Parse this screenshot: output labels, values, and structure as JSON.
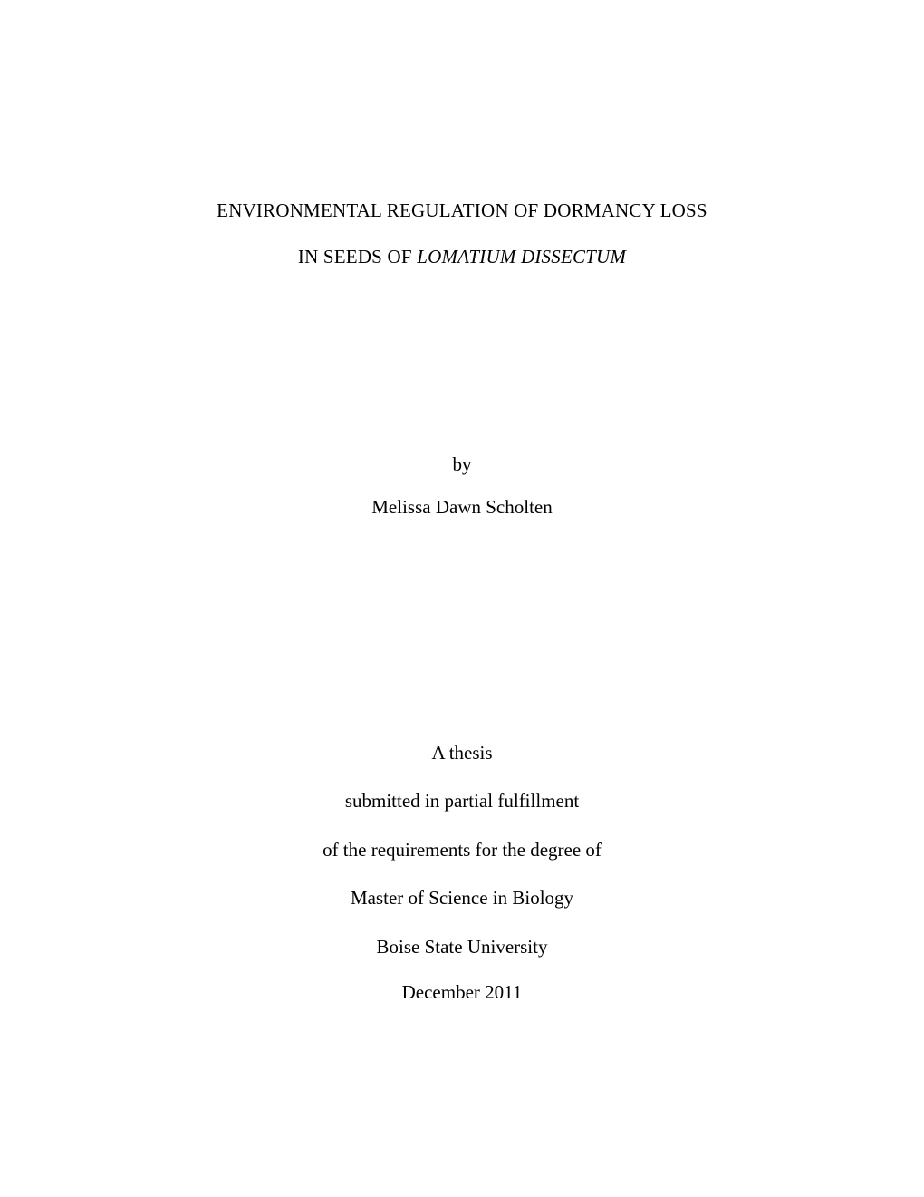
{
  "typography": {
    "font_family": "Times New Roman",
    "base_font_size_pt": 12,
    "text_color": "#000000",
    "background_color": "#ffffff"
  },
  "title": {
    "line1_plain": "ENVIRONMENTAL REGULATION OF DORMANCY LOSS",
    "line2_prefix": "IN SEEDS OF ",
    "line2_italic": "LOMATIUM DISSECTUM"
  },
  "author": {
    "by_label": "by",
    "name": "Melissa Dawn Scholten"
  },
  "description": {
    "line1": "A thesis",
    "line2": "submitted in partial fulfillment",
    "line3": "of the requirements for the degree of",
    "line4": "Master of Science in Biology",
    "line5": "Boise State University"
  },
  "date": {
    "value": "December 2011"
  }
}
